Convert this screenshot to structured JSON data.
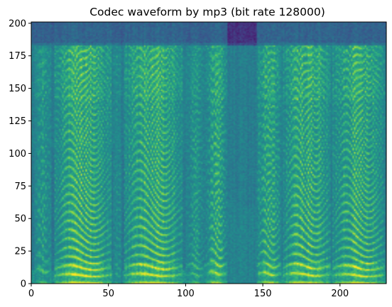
{
  "chart_data": {
    "type": "heatmap",
    "title": "Codec waveform by mp3 (bit rate 128000)",
    "xlabel": "",
    "ylabel": "",
    "xlim": [
      0,
      230
    ],
    "ylim": [
      0,
      201
    ],
    "x_ticks": [
      0,
      50,
      100,
      150,
      200
    ],
    "y_ticks": [
      0,
      25,
      50,
      75,
      100,
      125,
      150,
      175,
      200
    ],
    "colormap": "viridis",
    "grid": false,
    "legend": "none",
    "rows": 201,
    "cols": 230,
    "lowpass_cutoff_bin": 183,
    "voiced_segments": [
      {
        "start": 2,
        "end": 12,
        "pitch_bin": 9,
        "strength": 0.55
      },
      {
        "start": 15,
        "end": 51,
        "pitch_bin": 5.5,
        "strength": 1.0
      },
      {
        "start": 53,
        "end": 58,
        "pitch_bin": 6,
        "strength": 0.35
      },
      {
        "start": 60,
        "end": 97,
        "pitch_bin": 5.8,
        "strength": 0.95
      },
      {
        "start": 100,
        "end": 112,
        "pitch_bin": 6,
        "strength": 0.5
      },
      {
        "start": 113,
        "end": 126,
        "pitch_bin": 7,
        "strength": 0.8
      },
      {
        "start": 146,
        "end": 161,
        "pitch_bin": 6.5,
        "strength": 0.8
      },
      {
        "start": 163,
        "end": 193,
        "pitch_bin": 6,
        "strength": 0.95
      },
      {
        "start": 195,
        "end": 228,
        "pitch_bin": 5.5,
        "strength": 0.95
      }
    ],
    "noise_segments": [
      {
        "start": 125,
        "end": 146,
        "strength": 0.45
      }
    ]
  }
}
